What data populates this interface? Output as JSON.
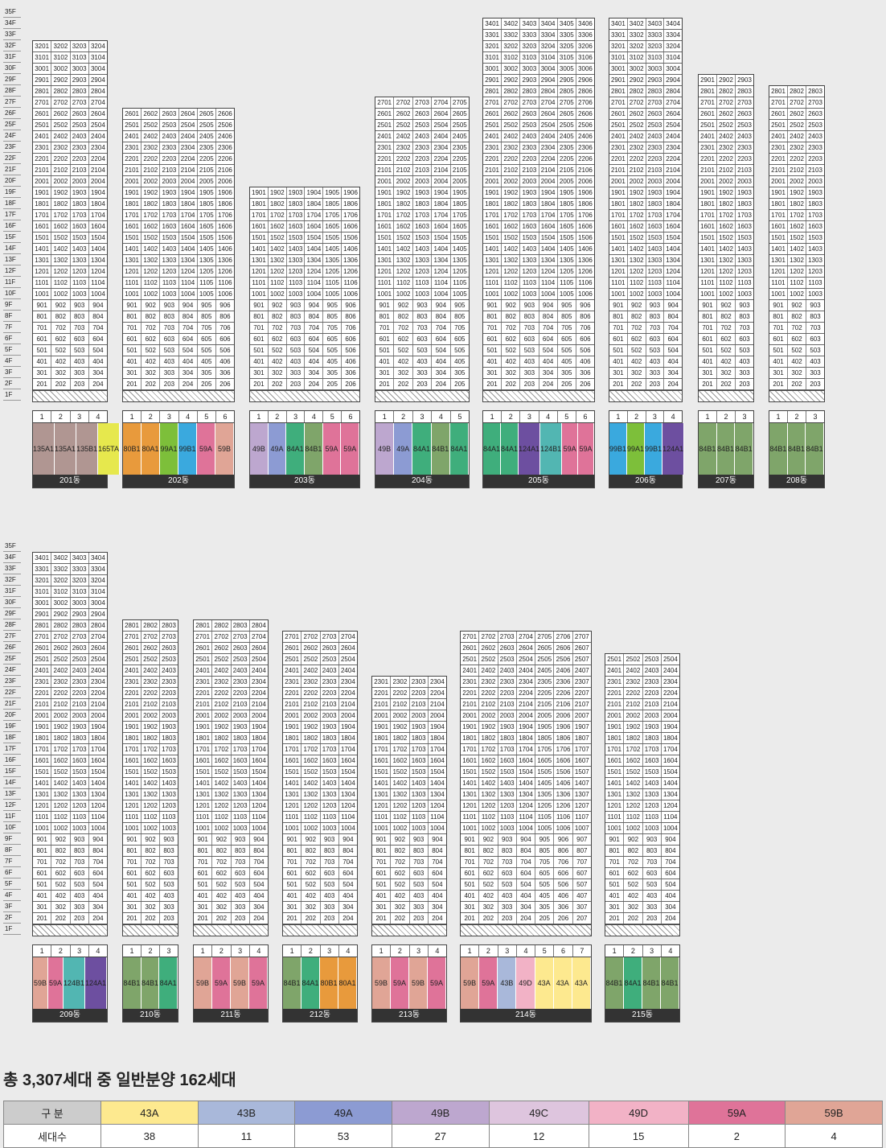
{
  "floors_top": [
    "35F",
    "34F",
    "33F",
    "32F",
    "31F",
    "30F",
    "29F",
    "28F",
    "27F",
    "26F",
    "25F",
    "24F",
    "23F",
    "22F",
    "21F",
    "20F",
    "19F",
    "18F",
    "17F",
    "16F",
    "15F",
    "14F",
    "13F",
    "12F",
    "11F",
    "10F",
    "9F",
    "8F",
    "7F",
    "6F",
    "5F",
    "4F",
    "3F",
    "2F",
    "1F"
  ],
  "buildings_top": [
    {
      "name": "201동",
      "cols": [
        "1",
        "2",
        "3",
        "4"
      ],
      "top": "32F",
      "types": [
        "135A1",
        "135A1",
        "135B1",
        "165TA"
      ]
    },
    {
      "name": "202동",
      "cols": [
        "1",
        "2",
        "3",
        "4",
        "5",
        "6"
      ],
      "top": "26F",
      "types": [
        "80B1",
        "80A1",
        "99A1",
        "99B1",
        "59A",
        "59B"
      ]
    },
    {
      "name": "203동",
      "cols": [
        "1",
        "2",
        "3",
        "4",
        "5",
        "6"
      ],
      "top": "19F",
      "types": [
        "49B",
        "49A",
        "84A1",
        "84B1",
        "59A",
        "59A"
      ]
    },
    {
      "name": "204동",
      "cols": [
        "1",
        "2",
        "3",
        "4",
        "5"
      ],
      "top": "27F",
      "types": [
        "49B",
        "49A",
        "84A1",
        "84B1",
        "84A1"
      ]
    },
    {
      "name": "205동",
      "cols": [
        "1",
        "2",
        "3",
        "4",
        "5",
        "6"
      ],
      "top": "34F",
      "types": [
        "84A1",
        "84A1",
        "124A1",
        "124B1",
        "59A",
        "59A"
      ]
    },
    {
      "name": "206동",
      "cols": [
        "1",
        "2",
        "3",
        "4"
      ],
      "top": "34F",
      "types": [
        "99B1",
        "99A1",
        "99B1",
        "124A1"
      ]
    },
    {
      "name": "207동",
      "cols": [
        "1",
        "2",
        "3"
      ],
      "top": "29F",
      "types": [
        "84B1",
        "84B1",
        "84B1"
      ]
    },
    {
      "name": "208동",
      "cols": [
        "1",
        "2",
        "3"
      ],
      "top": "28F",
      "types": [
        "84B1",
        "84B1",
        "84B1"
      ]
    }
  ],
  "buildings_bottom": [
    {
      "name": "209동",
      "cols": [
        "1",
        "2",
        "3",
        "4"
      ],
      "top": "34F",
      "types": [
        "59B",
        "59A",
        "124B1",
        "124A1"
      ]
    },
    {
      "name": "210동",
      "cols": [
        "1",
        "2",
        "3"
      ],
      "top": "28F",
      "types": [
        "84B1",
        "84B1",
        "84A1"
      ]
    },
    {
      "name": "211동",
      "cols": [
        "1",
        "2",
        "3",
        "4"
      ],
      "top": "28F",
      "types": [
        "59B",
        "59A",
        "59B",
        "59A"
      ]
    },
    {
      "name": "212동",
      "cols": [
        "1",
        "2",
        "3",
        "4"
      ],
      "top": "27F",
      "types": [
        "84B1",
        "84A1",
        "80B1",
        "80A1"
      ]
    },
    {
      "name": "213동",
      "cols": [
        "1",
        "2",
        "3",
        "4"
      ],
      "top": "23F",
      "types": [
        "59B",
        "59A",
        "59B",
        "59A"
      ]
    },
    {
      "name": "214동",
      "cols": [
        "1",
        "2",
        "3",
        "4",
        "5",
        "6",
        "7"
      ],
      "top": "27F",
      "types": [
        "59B",
        "59A",
        "43B",
        "49D",
        "43A",
        "43A",
        "43A"
      ]
    },
    {
      "name": "215동",
      "cols": [
        "1",
        "2",
        "3",
        "4"
      ],
      "top": "25F",
      "types": [
        "84B1",
        "84A1",
        "84B1",
        "84B1"
      ]
    }
  ],
  "summary": {
    "title": "총 3,307세대 중 일반분양 162세대",
    "row_header": "구 분",
    "count_header": "세대수",
    "types": [
      "43A",
      "43B",
      "49A",
      "49B",
      "49C",
      "49D",
      "59A",
      "59B"
    ],
    "counts": [
      "38",
      "11",
      "53",
      "27",
      "12",
      "15",
      "2",
      "4"
    ]
  }
}
